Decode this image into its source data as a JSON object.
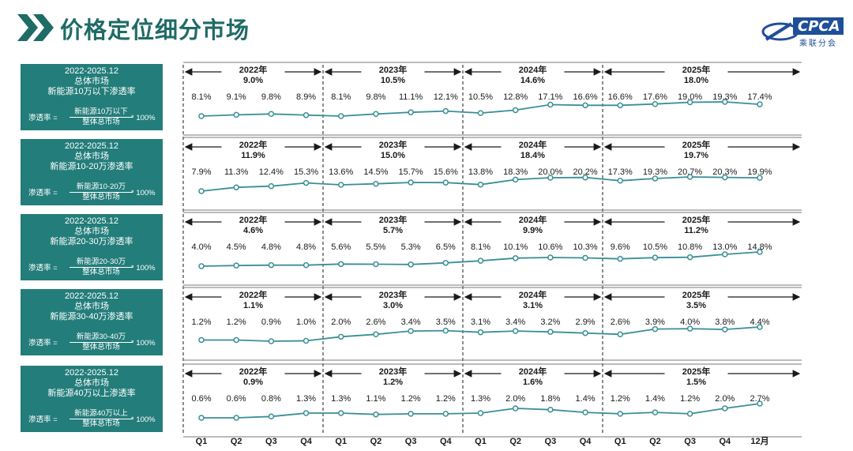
{
  "page": {
    "title": "价格定位细分市场"
  },
  "logo": {
    "text": "CPCA",
    "subtitle": "乘联分会"
  },
  "colors": {
    "panel": "#237d7b",
    "line": "#3a8f96",
    "title": "#1f6b66"
  },
  "panels": [
    {
      "lines": [
        "2022-2025.12",
        "总体市场",
        "新能源10万以下渗透率"
      ],
      "formula": {
        "lhs": "渗透率 =",
        "numerator": "新能源10万以下",
        "denominator": "整体总市场",
        "rhs": "* 100%"
      }
    },
    {
      "lines": [
        "2022-2025.12",
        "总体市场",
        "新能源10-20万渗透率"
      ],
      "formula": {
        "lhs": "渗透率 =",
        "numerator": "新能源10-20万",
        "denominator": "整体总市场",
        "rhs": "* 100%"
      }
    },
    {
      "lines": [
        "2022-2025.12",
        "总体市场",
        "新能源20-30万渗透率"
      ],
      "formula": {
        "lhs": "渗透率 =",
        "numerator": "新能源20-30万",
        "denominator": "整体总市场",
        "rhs": "* 100%"
      }
    },
    {
      "lines": [
        "2022-2025.12",
        "总体市场",
        "新能源30-40万渗透率"
      ],
      "formula": {
        "lhs": "渗透率 =",
        "numerator": "新能源30-40万",
        "denominator": "整体总市场",
        "rhs": "* 100%"
      }
    },
    {
      "lines": [
        "2022-2025.12",
        "总体市场",
        "新能源40万以上渗透率"
      ],
      "formula": {
        "lhs": "渗透率 =",
        "numerator": "新能源40万以上",
        "denominator": "整体总市场",
        "rhs": "* 100%"
      }
    }
  ],
  "chart_data": {
    "type": "line",
    "categories": [
      "Q1",
      "Q2",
      "Q3",
      "Q4",
      "Q1",
      "Q2",
      "Q3",
      "Q4",
      "Q1",
      "Q2",
      "Q3",
      "Q4",
      "Q1",
      "Q2",
      "Q3",
      "Q4",
      "12月"
    ],
    "years": [
      "2022年",
      "2023年",
      "2024年",
      "2025年"
    ],
    "series": [
      {
        "values": [
          8.1,
          9.1,
          9.8,
          8.9,
          8.1,
          9.8,
          11.1,
          12.1,
          10.5,
          12.8,
          17.1,
          16.6,
          16.6,
          17.6,
          19.0,
          19.3,
          17.4
        ],
        "labels": [
          "8.1%",
          "9.1%",
          "9.8%",
          "8.9%",
          "8.1%",
          "9.8%",
          "11.1%",
          "12.1%",
          "10.5%",
          "12.8%",
          "17.1%",
          "16.6%",
          "16.6%",
          "17.6%",
          "19.0%",
          "19.3%",
          "17.4%"
        ],
        "year_totals": [
          "9.0%",
          "10.5%",
          "14.6%",
          "18.0%"
        ]
      },
      {
        "values": [
          7.9,
          11.3,
          12.4,
          15.3,
          13.6,
          14.5,
          15.7,
          15.6,
          13.8,
          18.3,
          20.0,
          20.2,
          17.3,
          19.3,
          20.7,
          20.3,
          19.9
        ],
        "labels": [
          "7.9%",
          "11.3%",
          "12.4%",
          "15.3%",
          "13.6%",
          "14.5%",
          "15.7%",
          "15.6%",
          "13.8%",
          "18.3%",
          "20.0%",
          "20.2%",
          "17.3%",
          "19.3%",
          "20.7%",
          "20.3%",
          "19.9%"
        ],
        "year_totals": [
          "11.9%",
          "15.0%",
          "18.4%",
          "19.7%"
        ]
      },
      {
        "values": [
          4.0,
          4.5,
          4.8,
          4.8,
          5.6,
          5.5,
          5.3,
          6.5,
          8.1,
          10.1,
          10.6,
          10.3,
          9.6,
          10.5,
          10.8,
          13.0,
          14.8
        ],
        "labels": [
          "4.0%",
          "4.5%",
          "4.8%",
          "4.8%",
          "5.6%",
          "5.5%",
          "5.3%",
          "6.5%",
          "8.1%",
          "10.1%",
          "10.6%",
          "10.3%",
          "9.6%",
          "10.5%",
          "10.8%",
          "13.0%",
          "14.8%"
        ],
        "year_totals": [
          "4.6%",
          "5.7%",
          "9.9%",
          "11.2%"
        ]
      },
      {
        "values": [
          1.2,
          1.2,
          0.9,
          1.0,
          2.0,
          2.6,
          3.4,
          3.5,
          3.1,
          3.4,
          3.2,
          2.9,
          2.6,
          3.9,
          4.0,
          3.8,
          4.4
        ],
        "labels": [
          "1.2%",
          "1.2%",
          "0.9%",
          "1.0%",
          "2.0%",
          "2.6%",
          "3.4%",
          "3.5%",
          "3.1%",
          "3.4%",
          "3.2%",
          "2.9%",
          "2.6%",
          "3.9%",
          "4.0%",
          "3.8%",
          "4.4%"
        ],
        "year_totals": [
          "1.1%",
          "3.0%",
          "3.1%",
          "3.5%"
        ]
      },
      {
        "values": [
          0.6,
          0.6,
          0.8,
          1.3,
          1.3,
          1.1,
          1.2,
          1.2,
          1.3,
          2.0,
          1.8,
          1.4,
          1.2,
          1.4,
          1.2,
          2.0,
          2.7
        ],
        "labels": [
          "0.6%",
          "0.6%",
          "0.8%",
          "1.3%",
          "1.3%",
          "1.1%",
          "1.2%",
          "1.2%",
          "1.3%",
          "2.0%",
          "1.8%",
          "1.4%",
          "1.2%",
          "1.4%",
          "1.2%",
          "2.0%",
          "2.7%"
        ],
        "year_totals": [
          "0.9%",
          "1.2%",
          "1.6%",
          "1.5%"
        ]
      }
    ]
  }
}
